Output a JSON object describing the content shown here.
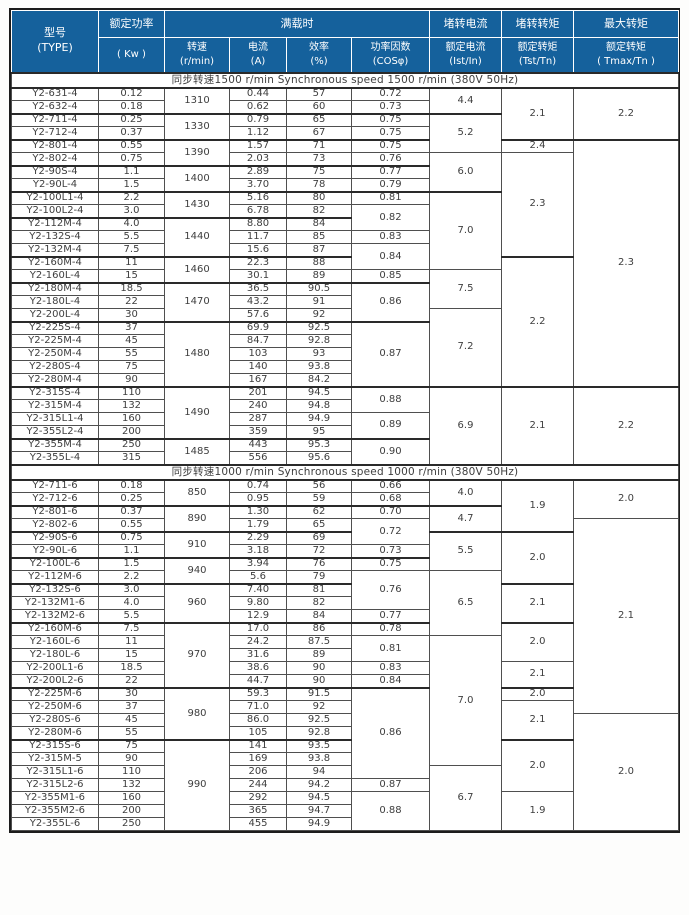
{
  "colors": {
    "header_bg": "#15619c",
    "header_text": "#ffffff",
    "body_text": "#3e3e3e",
    "border": "#4f4f4f",
    "border_strong": "#2a2a2a",
    "page_bg": "#fdfdfc"
  },
  "header": {
    "type": [
      "型号",
      "(TYPE)"
    ],
    "power_top": "额定功率",
    "power_bottom": "( Kw )",
    "full_load": "满载时",
    "speed": [
      "转速",
      "(r/min)"
    ],
    "current": [
      "电流",
      "(A)"
    ],
    "efficiency": [
      "效率",
      "(%)"
    ],
    "power_factor": [
      "功率因数",
      "(COSφ)"
    ],
    "ist_top": "堵转电流",
    "ist_bottom": [
      "额定电流",
      "(Ist/In)"
    ],
    "tst_top": "堵转转矩",
    "tst_bottom": [
      "额定转矩",
      "(Tst/Tn)"
    ],
    "tmax_top": "最大转矩",
    "tmax_bottom": [
      "额定转矩",
      "( Tmax/Tn )"
    ]
  },
  "table": {
    "columns": [
      "model",
      "power-kw",
      "speed-rpm",
      "current-a",
      "efficiency-pct",
      "cos-phi",
      "ist-in",
      "tst-tn",
      "tmax-tn"
    ],
    "sections": [
      {
        "title": "同步转速1500 r/min  Synchronous speed  1500 r/min (380V 50Hz)",
        "rows": [
          [
            "Y2-631-4",
            "0.12",
            [
              "1310",
              2
            ],
            "0.44",
            "57",
            "0.72",
            [
              "4.4",
              2
            ],
            [
              "2.1",
              4
            ],
            [
              "2.2",
              4
            ]
          ],
          [
            "Y2-632-4",
            "0.18",
            null,
            "0.62",
            "60",
            "0.73",
            null,
            null,
            null
          ],
          [
            "Y2-711-4",
            "0.25",
            [
              "1330",
              2
            ],
            "0.79",
            "65",
            "0.75",
            [
              "5.2",
              3
            ],
            null,
            null
          ],
          [
            "Y2-712-4",
            "0.37",
            null,
            "1.12",
            "67",
            "0.75",
            null,
            null,
            null
          ],
          [
            "Y2-801-4",
            "0.55",
            [
              "1390",
              2
            ],
            "1.57",
            "71",
            "0.75",
            null,
            [
              "2.4",
              1
            ],
            [
              "2.3",
              19
            ]
          ],
          [
            "Y2-802-4",
            "0.75",
            null,
            "2.03",
            "73",
            "0.76",
            [
              "6.0",
              3
            ],
            [
              "2.3",
              8
            ],
            null
          ],
          [
            "Y2-90S-4",
            "1.1",
            [
              "1400",
              2
            ],
            "2.89",
            "75",
            "0.77",
            null,
            null,
            null
          ],
          [
            "Y2-90L-4",
            "1.5",
            null,
            "3.70",
            "78",
            "0.79",
            null,
            null,
            null
          ],
          [
            "Y2-100L1-4",
            "2.2",
            [
              "1430",
              2
            ],
            "5.16",
            "80",
            "0.81",
            [
              "7.0",
              6
            ],
            null,
            null
          ],
          [
            "Y2-100L2-4",
            "3.0",
            null,
            "6.78",
            "82",
            [
              "0.82",
              2
            ],
            null,
            null,
            null
          ],
          [
            "Y2-112M-4",
            "4.0",
            [
              "1440",
              3
            ],
            "8.80",
            "84",
            null,
            null,
            null,
            null
          ],
          [
            "Y2-132S-4",
            "5.5",
            null,
            "11.7",
            "85",
            "0.83",
            null,
            null,
            null
          ],
          [
            "Y2-132M-4",
            "7.5",
            null,
            "15.6",
            "87",
            [
              "0.84",
              2
            ],
            null,
            null,
            null
          ],
          [
            "Y2-160M-4",
            "11",
            [
              "1460",
              2
            ],
            "22.3",
            "88",
            null,
            null,
            [
              "2.2",
              10
            ],
            null
          ],
          [
            "Y2-160L-4",
            "15",
            null,
            "30.1",
            "89",
            "0.85",
            [
              "7.5",
              3
            ],
            null,
            null
          ],
          [
            "Y2-180M-4",
            "18.5",
            [
              "1470",
              3
            ],
            "36.5",
            "90.5",
            [
              "0.86",
              3
            ],
            null,
            null,
            null
          ],
          [
            "Y2-180L-4",
            "22",
            null,
            "43.2",
            "91",
            null,
            null,
            null,
            null
          ],
          [
            "Y2-200L-4",
            "30",
            null,
            "57.6",
            "92",
            null,
            [
              "7.2",
              6
            ],
            null,
            null
          ],
          [
            "Y2-225S-4",
            "37",
            [
              "1480",
              5
            ],
            "69.9",
            "92.5",
            [
              "0.87",
              5
            ],
            null,
            null,
            null
          ],
          [
            "Y2-225M-4",
            "45",
            null,
            "84.7",
            "92.8",
            null,
            null,
            null,
            null
          ],
          [
            "Y2-250M-4",
            "55",
            null,
            "103",
            "93",
            null,
            null,
            null,
            null
          ],
          [
            "Y2-280S-4",
            "75",
            null,
            "140",
            "93.8",
            null,
            null,
            null,
            null
          ],
          [
            "Y2-280M-4",
            "90",
            null,
            "167",
            "84.2",
            null,
            null,
            null,
            null
          ],
          [
            "Y2-315S-4",
            "110",
            [
              "1490",
              4
            ],
            "201",
            "94.5",
            [
              "0.88",
              2
            ],
            [
              "6.9",
              6
            ],
            [
              "2.1",
              6
            ],
            [
              "2.2",
              6
            ]
          ],
          [
            "Y2-315M-4",
            "132",
            null,
            "240",
            "94.8",
            null,
            null,
            null,
            null
          ],
          [
            "Y2-315L1-4",
            "160",
            null,
            "287",
            "94.9",
            [
              "0.89",
              2
            ],
            null,
            null,
            null
          ],
          [
            "Y2-355L2-4",
            "200",
            null,
            "359",
            "95",
            null,
            null,
            null,
            null
          ],
          [
            "Y2-355M-4",
            "250",
            [
              "1485",
              2
            ],
            "443",
            "95.3",
            [
              "0.90",
              2
            ],
            null,
            null,
            null
          ],
          [
            "Y2-355L-4",
            "315",
            null,
            "556",
            "95.6",
            null,
            null,
            null,
            null
          ]
        ]
      },
      {
        "title": "同步转速1000 r/min  Synchronous speed  1000 r/min (380V  50Hz)",
        "rows": [
          [
            "Y2-711-6",
            "0.18",
            [
              "850",
              2
            ],
            "0.74",
            "56",
            "0.66",
            [
              "4.0",
              2
            ],
            [
              "1.9",
              4
            ],
            [
              "2.0",
              3
            ]
          ],
          [
            "Y2-712-6",
            "0.25",
            null,
            "0.95",
            "59",
            "0.68",
            null,
            null,
            null
          ],
          [
            "Y2-801-6",
            "0.37",
            [
              "890",
              2
            ],
            "1.30",
            "62",
            "0.70",
            [
              "4.7",
              2
            ],
            null,
            null
          ],
          [
            "Y2-802-6",
            "0.55",
            null,
            "1.79",
            "65",
            [
              "0.72",
              2
            ],
            null,
            null,
            [
              "2.1",
              15
            ]
          ],
          [
            "Y2-90S-6",
            "0.75",
            [
              "910",
              2
            ],
            "2.29",
            "69",
            null,
            [
              "5.5",
              3
            ],
            [
              "2.0",
              4
            ],
            null
          ],
          [
            "Y2-90L-6",
            "1.1",
            null,
            "3.18",
            "72",
            "0.73",
            null,
            null,
            null
          ],
          [
            "Y2-100L-6",
            "1.5",
            [
              "940",
              2
            ],
            "3.94",
            "76",
            "0.75",
            null,
            null,
            null
          ],
          [
            "Y2-112M-6",
            "2.2",
            null,
            "5.6",
            "79",
            [
              "0.76",
              3
            ],
            [
              "6.5",
              5
            ],
            null,
            null
          ],
          [
            "Y2-132S-6",
            "3.0",
            [
              "960",
              3
            ],
            "7.40",
            "81",
            null,
            null,
            [
              "2.1",
              3
            ],
            null
          ],
          [
            "Y2-132M1-6",
            "4.0",
            null,
            "9.80",
            "82",
            null,
            null,
            null,
            null
          ],
          [
            "Y2-132M2-6",
            "5.5",
            null,
            "12.9",
            "84",
            "0.77",
            null,
            null,
            null
          ],
          [
            "Y2-160M-6",
            "7.5",
            [
              "970",
              5
            ],
            "17.0",
            "86",
            "0.78",
            null,
            [
              "2.0",
              3
            ],
            null
          ],
          [
            "Y2-160L-6",
            "11",
            null,
            "24.2",
            "87.5",
            [
              "0.81",
              2
            ],
            [
              "7.0",
              10
            ],
            null,
            null
          ],
          [
            "Y2-180L-6",
            "15",
            null,
            "31.6",
            "89",
            null,
            null,
            null,
            null
          ],
          [
            "Y2-200L1-6",
            "18.5",
            null,
            "38.6",
            "90",
            "0.83",
            null,
            [
              "2.1",
              2
            ],
            null
          ],
          [
            "Y2-200L2-6",
            "22",
            null,
            "44.7",
            "90",
            "0.84",
            null,
            null,
            null
          ],
          [
            "Y2-225M-6",
            "30",
            [
              "980",
              4
            ],
            "59.3",
            "91.5",
            [
              "0.86",
              7
            ],
            null,
            [
              "2.0",
              1
            ],
            null
          ],
          [
            "Y2-250M-6",
            "37",
            null,
            "71.0",
            "92",
            null,
            null,
            [
              "2.1",
              3
            ],
            null
          ],
          [
            "Y2-280S-6",
            "45",
            null,
            "86.0",
            "92.5",
            null,
            null,
            null,
            [
              "2.0",
              9
            ]
          ],
          [
            "Y2-280M-6",
            "55",
            null,
            "105",
            "92.8",
            null,
            null,
            null,
            null
          ],
          [
            "Y2-315S-6",
            "75",
            [
              "990",
              7
            ],
            "141",
            "93.5",
            null,
            null,
            [
              "2.0",
              4
            ],
            null
          ],
          [
            "Y2-315M-5",
            "90",
            null,
            "169",
            "93.8",
            null,
            null,
            null,
            null
          ],
          [
            "Y2-315L1-6",
            "110",
            null,
            "206",
            "94",
            null,
            [
              "6.7",
              5
            ],
            null,
            null
          ],
          [
            "Y2-315L2-6",
            "132",
            null,
            "244",
            "94.2",
            "0.87",
            null,
            null,
            null
          ],
          [
            "Y2-355M1-6",
            "160",
            null,
            "292",
            "94.5",
            [
              "0.88",
              3
            ],
            null,
            [
              "1.9",
              3
            ],
            null
          ],
          [
            "Y2-355M2-6",
            "200",
            null,
            "365",
            "94.7",
            null,
            null,
            null,
            null
          ],
          [
            "Y2-355L-6",
            "250",
            null,
            "455",
            "94.9",
            null,
            null,
            null,
            null
          ]
        ]
      }
    ]
  }
}
